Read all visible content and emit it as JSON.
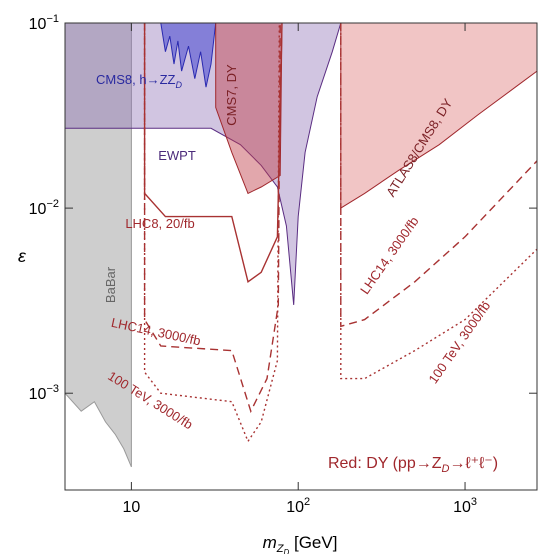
{
  "chart_data": {
    "type": "region",
    "log_x": true,
    "log_y": true,
    "xlim": [
      4,
      2700
    ],
    "ylim": [
      0.0003,
      0.1
    ],
    "xticks": [
      10,
      {
        "value": 100,
        "label": "10",
        "exp": "2"
      },
      {
        "value": 1000,
        "label": "10",
        "exp": "3"
      }
    ],
    "yticks": [
      {
        "value": 0.001,
        "label": "10",
        "exp": "−3"
      },
      {
        "value": 0.01,
        "label": "10",
        "exp": "−2"
      },
      {
        "value": 0.1,
        "label": "10",
        "exp": "−1"
      }
    ],
    "xlabel": [
      "m",
      "Z",
      "D",
      " [GeV]"
    ],
    "ylabel": "ε",
    "note": [
      "Red: DY (pp→Z",
      "D",
      "→ℓ⁺ℓ⁻)"
    ],
    "series": [
      {
        "name": "BaBar",
        "style": "region",
        "color": "#9a9a9a",
        "fill": "rgba(190,190,190,0.75)",
        "x": [
          4,
          10,
          10,
          9,
          8,
          7,
          6,
          5,
          4
        ],
        "values": [
          0.1,
          0.1,
          0.0004,
          0.0005,
          0.0006,
          0.0007,
          0.0009,
          0.0008,
          0.001
        ]
      },
      {
        "name": "EWPT",
        "style": "region",
        "color": "#5a2d82",
        "fill": "rgba(140,110,180,0.4)",
        "x": [
          4,
          4,
          30,
          45,
          60,
          75,
          85,
          94,
          100,
          110,
          130,
          160,
          180
        ],
        "values": [
          0.1,
          0.027,
          0.027,
          0.022,
          0.017,
          0.013,
          0.008,
          0.003,
          0.009,
          0.02,
          0.04,
          0.07,
          0.1
        ]
      },
      {
        "name": "CMS8, h→ZZ",
        "name_sub": "D",
        "style": "region",
        "color": "#2a2ab0",
        "fill": "rgba(70,70,210,0.55)",
        "x": [
          15,
          16,
          17,
          18,
          19,
          20,
          22,
          24,
          26,
          28,
          30,
          32
        ],
        "values": [
          0.1,
          0.07,
          0.085,
          0.06,
          0.08,
          0.055,
          0.075,
          0.05,
          0.07,
          0.045,
          0.06,
          0.1
        ]
      },
      {
        "name": "CMS7, DY",
        "style": "region",
        "color": "#a0282d",
        "fill": "rgba(190,60,70,0.45)",
        "x": [
          32,
          32,
          40,
          50,
          60,
          78,
          80
        ],
        "values": [
          0.1,
          0.035,
          0.02,
          0.012,
          0.013,
          0.015,
          0.1
        ]
      },
      {
        "name": "ATLAS8/CMS8, DY",
        "style": "region",
        "color": "#a0282d",
        "fill": "rgba(215,90,90,0.35)",
        "x": [
          180,
          180,
          250,
          400,
          700,
          1200,
          2000,
          2700,
          2700
        ],
        "values": [
          0.1,
          0.01,
          0.012,
          0.016,
          0.022,
          0.032,
          0.045,
          0.055,
          0.1
        ]
      },
      {
        "name": "LHC8, 20/fb",
        "style": "solid",
        "color": "#a83232",
        "x": [
          12,
          12,
          16,
          40,
          50,
          60,
          75,
          80
        ],
        "values": [
          0.1,
          0.012,
          0.009,
          0.009,
          0.004,
          0.0045,
          0.007,
          0.1
        ]
      },
      {
        "name": "LHC14, 3000/fb",
        "style": "dashed",
        "color": "#a83232",
        "x": [
          12,
          12,
          15,
          40,
          52,
          65,
          76,
          78
        ],
        "values": [
          0.1,
          0.0025,
          0.0018,
          0.0017,
          0.0008,
          0.0012,
          0.003,
          0.1
        ]
      },
      {
        "name": "LHC14, 3000/fb",
        "style": "dashed",
        "color": "#a83232",
        "x": [
          180,
          180,
          250,
          500,
          1000,
          2700
        ],
        "values": [
          0.1,
          0.0023,
          0.0025,
          0.004,
          0.007,
          0.018
        ]
      },
      {
        "name": "100 TeV, 3000/fb",
        "style": "dotted",
        "color": "#a83232",
        "x": [
          12,
          12,
          15,
          40,
          50,
          60,
          75,
          77
        ],
        "values": [
          0.1,
          0.0013,
          0.001,
          0.0009,
          0.00055,
          0.0007,
          0.0015,
          0.1
        ]
      },
      {
        "name": "100 TeV, 3000/fb",
        "style": "dotted",
        "color": "#a83232",
        "x": [
          180,
          180,
          250,
          500,
          1000,
          2700
        ],
        "values": [
          0.1,
          0.0012,
          0.0012,
          0.0017,
          0.0025,
          0.006
        ]
      }
    ]
  }
}
